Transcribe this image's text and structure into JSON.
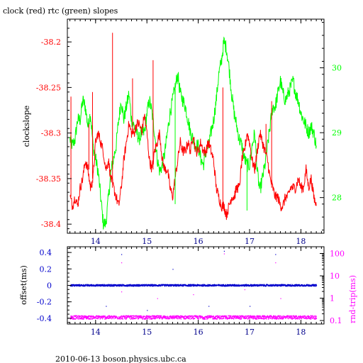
{
  "title": "clock (red) rtc (green) slopes",
  "footer": "2010-06-13 boson.physics.ubc.ca",
  "colors": {
    "clock": "#ff0000",
    "rtc": "#00ff00",
    "offset": "#0000cc",
    "rndtrip": "#ff00ff",
    "axis": "#000000"
  },
  "chart_data": [
    {
      "type": "line",
      "ylabel": "clockslope",
      "y2label": "",
      "x_ticks": [
        "14",
        "15",
        "16",
        "17",
        "18"
      ],
      "y_ticks": [
        "-38.2",
        "-38.25",
        "-38.3",
        "-38.35",
        "-38.4"
      ],
      "y2_ticks": [
        "30",
        "29",
        "28"
      ],
      "xlim": [
        13.45,
        18.45
      ],
      "ylim": [
        -38.41,
        -38.175
      ],
      "y2lim": [
        27.45,
        30.75
      ],
      "series": [
        {
          "name": "clock",
          "axis": "left",
          "x": [
            13.5,
            13.55,
            13.6,
            13.65,
            13.7,
            13.75,
            13.8,
            13.85,
            13.9,
            13.95,
            14.0,
            14.05,
            14.1,
            14.15,
            14.2,
            14.25,
            14.3,
            14.35,
            14.4,
            14.45,
            14.5,
            14.55,
            14.6,
            14.65,
            14.7,
            14.75,
            14.8,
            14.85,
            14.9,
            14.95,
            15.0,
            15.05,
            15.1,
            15.15,
            15.2,
            15.25,
            15.3,
            15.35,
            15.4,
            15.45,
            15.5,
            15.55,
            15.6,
            15.65,
            15.7,
            15.75,
            15.8,
            15.85,
            15.9,
            15.95,
            16.0,
            16.05,
            16.1,
            16.15,
            16.2,
            16.25,
            16.3,
            16.35,
            16.4,
            16.45,
            16.5,
            16.55,
            16.6,
            16.65,
            16.7,
            16.75,
            16.8,
            16.85,
            16.9,
            16.95,
            17.0,
            17.05,
            17.1,
            17.15,
            17.2,
            17.25,
            17.3,
            17.35,
            17.4,
            17.45,
            17.5,
            17.55,
            17.6,
            17.65,
            17.7,
            17.75,
            17.8,
            17.85,
            17.9,
            17.95,
            18.0,
            18.05,
            18.1,
            18.15,
            18.2,
            18.25,
            18.3
          ],
          "values": [
            -38.37,
            -38.38,
            -38.37,
            -38.38,
            -38.36,
            -38.35,
            -38.33,
            -38.34,
            -38.36,
            -38.35,
            -38.31,
            -38.3,
            -38.31,
            -38.32,
            -38.34,
            -38.33,
            -38.35,
            -38.36,
            -38.37,
            -38.38,
            -38.36,
            -38.33,
            -38.31,
            -38.29,
            -38.3,
            -38.3,
            -38.29,
            -38.29,
            -38.3,
            -38.28,
            -38.3,
            -38.33,
            -38.34,
            -38.32,
            -38.31,
            -38.3,
            -38.33,
            -38.34,
            -38.34,
            -38.36,
            -38.37,
            -38.35,
            -38.33,
            -38.31,
            -38.32,
            -38.32,
            -38.31,
            -38.32,
            -38.3,
            -38.32,
            -38.32,
            -38.31,
            -38.32,
            -38.32,
            -38.31,
            -38.32,
            -38.33,
            -38.36,
            -38.37,
            -38.38,
            -38.38,
            -38.39,
            -38.38,
            -38.37,
            -38.37,
            -38.36,
            -38.36,
            -38.33,
            -38.32,
            -38.3,
            -38.31,
            -38.33,
            -38.34,
            -38.32,
            -38.3,
            -38.31,
            -38.32,
            -38.33,
            -38.35,
            -38.36,
            -38.37,
            -38.37,
            -38.38,
            -38.38,
            -38.37,
            -38.37,
            -38.36,
            -38.36,
            -38.36,
            -38.35,
            -38.36,
            -38.36,
            -38.34,
            -38.36,
            -38.35,
            -38.37,
            -38.38
          ]
        },
        {
          "name": "rtc",
          "axis": "right",
          "x": [
            13.5,
            13.55,
            13.6,
            13.65,
            13.7,
            13.75,
            13.8,
            13.85,
            13.9,
            13.95,
            14.0,
            14.05,
            14.1,
            14.15,
            14.2,
            14.25,
            14.3,
            14.35,
            14.4,
            14.45,
            14.5,
            14.55,
            14.6,
            14.65,
            14.7,
            14.75,
            14.8,
            14.85,
            14.9,
            14.95,
            15.0,
            15.05,
            15.1,
            15.15,
            15.2,
            15.25,
            15.3,
            15.35,
            15.4,
            15.45,
            15.5,
            15.55,
            15.6,
            15.65,
            15.7,
            15.75,
            15.8,
            15.85,
            15.9,
            15.95,
            16.0,
            16.05,
            16.1,
            16.15,
            16.2,
            16.25,
            16.3,
            16.35,
            16.4,
            16.45,
            16.5,
            16.55,
            16.6,
            16.65,
            16.7,
            16.75,
            16.8,
            16.85,
            16.9,
            16.95,
            17.0,
            17.05,
            17.1,
            17.15,
            17.2,
            17.25,
            17.3,
            17.35,
            17.4,
            17.45,
            17.5,
            17.55,
            17.6,
            17.65,
            17.7,
            17.75,
            17.8,
            17.85,
            17.9,
            17.95,
            18.0,
            18.05,
            18.1,
            18.15,
            18.2,
            18.25,
            18.3
          ],
          "values": [
            28.9,
            28.8,
            28.9,
            29.2,
            29.2,
            29.5,
            29.4,
            29.1,
            29.3,
            28.8,
            28.6,
            28.4,
            28.0,
            27.6,
            27.6,
            28.0,
            28.4,
            28.6,
            28.8,
            29.2,
            29.5,
            29.2,
            29.4,
            29.6,
            29.2,
            29.1,
            29.0,
            28.9,
            29.0,
            29.0,
            29.3,
            29.5,
            29.3,
            29.0,
            28.6,
            28.4,
            28.5,
            28.7,
            29.0,
            29.3,
            29.5,
            29.7,
            29.9,
            29.6,
            29.5,
            29.4,
            29.2,
            29.0,
            28.9,
            28.8,
            28.8,
            28.6,
            28.5,
            28.7,
            28.8,
            29.0,
            29.2,
            29.5,
            29.9,
            30.1,
            30.4,
            30.3,
            30.0,
            29.6,
            29.3,
            29.1,
            28.9,
            28.8,
            28.6,
            28.5,
            28.5,
            28.8,
            29.0,
            28.4,
            28.1,
            28.3,
            28.5,
            28.8,
            29.1,
            29.4,
            29.4,
            29.6,
            29.8,
            29.6,
            29.5,
            29.6,
            29.7,
            29.8,
            29.6,
            29.5,
            29.3,
            29.2,
            29.1,
            29.0,
            29.1,
            29.0,
            28.8
          ]
        }
      ],
      "spikes": [
        {
          "series": "clock",
          "x": 13.52,
          "to": -38.26
        },
        {
          "series": "clock",
          "x": 13.87,
          "to": -38.29
        },
        {
          "series": "clock",
          "x": 13.94,
          "to": -38.255
        },
        {
          "series": "clock",
          "x": 14.33,
          "to": -38.19
        },
        {
          "series": "clock",
          "x": 14.72,
          "to": -38.24
        },
        {
          "series": "clock",
          "x": 15.12,
          "to": -38.22
        },
        {
          "series": "clock",
          "x": 16.48,
          "to": -38.25
        },
        {
          "series": "clock",
          "x": 17.32,
          "to": -38.29
        },
        {
          "series": "clock",
          "x": 17.43,
          "to": -38.265
        },
        {
          "series": "rtc",
          "x": 14.29,
          "to": 28.35
        },
        {
          "series": "rtc",
          "x": 15.55,
          "to": 27.9
        },
        {
          "series": "rtc",
          "x": 16.95,
          "to": 27.8
        }
      ]
    },
    {
      "type": "scatter",
      "ylabel": "offset(ms)",
      "y2label": "rnd-trip(ms)",
      "x_ticks": [
        "14",
        "15",
        "16",
        "17",
        "18"
      ],
      "y_ticks": [
        "0.4",
        "0.2",
        "0",
        "-0.2",
        "-0.4"
      ],
      "y2_ticks": [
        "100",
        "10",
        "1",
        "0.1"
      ],
      "xlim": [
        13.45,
        18.45
      ],
      "ylim": [
        -0.47,
        0.47
      ],
      "y2lim": [
        0.07,
        200
      ],
      "series": [
        {
          "name": "offset",
          "axis": "left",
          "x_range": [
            13.5,
            18.3
          ],
          "baseline": 0.0
        },
        {
          "name": "rnd-trip",
          "axis": "right",
          "x_range": [
            13.5,
            18.3
          ],
          "baseline": 0.14
        }
      ],
      "outliers_offset": [
        [
          14.5,
          0.38
        ],
        [
          15.5,
          0.2
        ],
        [
          16.5,
          0.42
        ],
        [
          17.5,
          0.38
        ],
        [
          17.0,
          -0.25
        ],
        [
          14.2,
          -0.25
        ],
        [
          15.0,
          -0.3
        ],
        [
          16.2,
          -0.25
        ]
      ],
      "outliers_rndtrip": [
        [
          14.5,
          40
        ],
        [
          16.5,
          100
        ],
        [
          17.5,
          40
        ],
        [
          14.5,
          2
        ],
        [
          15.9,
          1.5
        ],
        [
          17.6,
          1.0
        ],
        [
          15.2,
          1.0
        ],
        [
          16.9,
          2.5
        ]
      ]
    }
  ]
}
